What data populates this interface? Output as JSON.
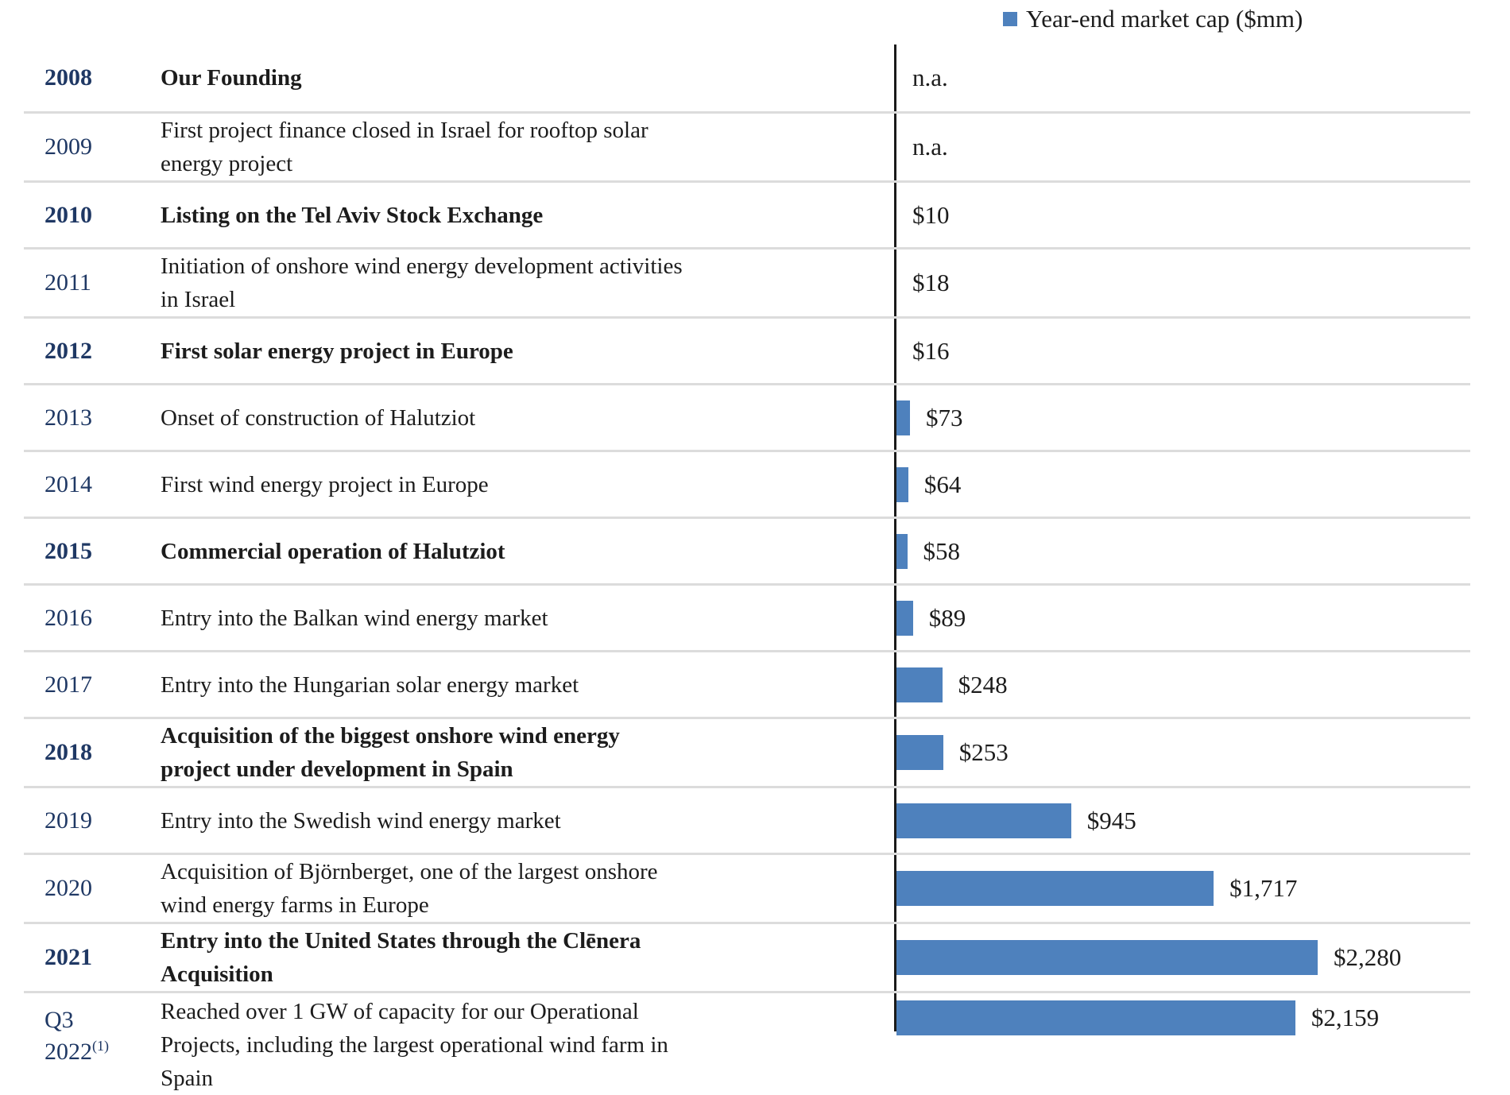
{
  "legend": {
    "label": "Year-end market cap ($mm)",
    "marker_color": "#4E81BD"
  },
  "colors": {
    "bar": "#4E81BD",
    "year_text": "#1F3864",
    "body_text": "#1c1c1c",
    "divider": "#DCDCDC",
    "axis": "#1a1a1a"
  },
  "rows": [
    {
      "year": "2008",
      "year2": "",
      "sup": "",
      "bold": true,
      "milestone": "Our Founding",
      "value_label": "n.a."
    },
    {
      "year": "2009",
      "year2": "",
      "sup": "",
      "bold": false,
      "milestone": "First project finance closed in Israel for rooftop solar\nenergy project",
      "value_label": "n.a."
    },
    {
      "year": "2010",
      "year2": "",
      "sup": "",
      "bold": true,
      "milestone": "Listing on the Tel Aviv Stock Exchange",
      "value_label": "$10"
    },
    {
      "year": "2011",
      "year2": "",
      "sup": "",
      "bold": false,
      "milestone": "Initiation of onshore wind energy development activities\nin Israel",
      "value_label": "$18"
    },
    {
      "year": "2012",
      "year2": "",
      "sup": "",
      "bold": true,
      "milestone": "First solar energy project in Europe",
      "value_label": "$16"
    },
    {
      "year": "2013",
      "year2": "",
      "sup": "",
      "bold": false,
      "milestone": "Onset of construction of Halutziot",
      "value_label": "$73"
    },
    {
      "year": "2014",
      "year2": "",
      "sup": "",
      "bold": false,
      "milestone": "First wind energy project in Europe",
      "value_label": "$64"
    },
    {
      "year": "2015",
      "year2": "",
      "sup": "",
      "bold": true,
      "milestone": "Commercial operation of Halutziot",
      "value_label": "$58"
    },
    {
      "year": "2016",
      "year2": "",
      "sup": "",
      "bold": false,
      "milestone": "Entry into the Balkan wind energy market",
      "value_label": "$89"
    },
    {
      "year": "2017",
      "year2": "",
      "sup": "",
      "bold": false,
      "milestone": "Entry into the Hungarian solar energy market",
      "value_label": "$248"
    },
    {
      "year": "2018",
      "year2": "",
      "sup": "",
      "bold": true,
      "milestone": "Acquisition of the biggest onshore wind energy\nproject under development in Spain",
      "value_label": "$253"
    },
    {
      "year": "2019",
      "year2": "",
      "sup": "",
      "bold": false,
      "milestone": "Entry into the Swedish wind energy market",
      "value_label": "$945"
    },
    {
      "year": "2020",
      "year2": "",
      "sup": "",
      "bold": false,
      "milestone": "Acquisition of Björnberget, one of the largest onshore\nwind energy farms in Europe",
      "value_label": "$1,717"
    },
    {
      "year": "2021",
      "year2": "",
      "sup": "",
      "bold": true,
      "milestone": "Entry into the United States through the Clēnera\nAcquisition",
      "value_label": "$2,280"
    },
    {
      "year": "Q3",
      "year2": "2022",
      "sup": "(1)",
      "bold": false,
      "milestone": "Reached over 1 GW of capacity for our Operational\nProjects, including the largest operational wind farm in\nSpain",
      "value_label": "$2,159"
    }
  ],
  "chart_data": {
    "type": "bar",
    "orientation": "horizontal",
    "title": "",
    "legend_entries": [
      "Year-end market cap ($mm)"
    ],
    "legend_position": "top-right",
    "categories": [
      "2008",
      "2009",
      "2010",
      "2011",
      "2012",
      "2013",
      "2014",
      "2015",
      "2016",
      "2017",
      "2018",
      "2019",
      "2020",
      "2021",
      "Q3 2022"
    ],
    "values": [
      null,
      null,
      10,
      18,
      16,
      73,
      64,
      58,
      89,
      248,
      253,
      945,
      1717,
      2280,
      2159
    ],
    "value_labels": [
      "n.a.",
      "n.a.",
      "$10",
      "$18",
      "$16",
      "$73",
      "$64",
      "$58",
      "$89",
      "$248",
      "$253",
      "$945",
      "$1,717",
      "$2,280",
      "$2,159"
    ],
    "xlim": [
      0,
      2400
    ],
    "grid": "row-dividers-only",
    "data_label_position": "outside-end",
    "bar_color": "#4E81BD"
  }
}
